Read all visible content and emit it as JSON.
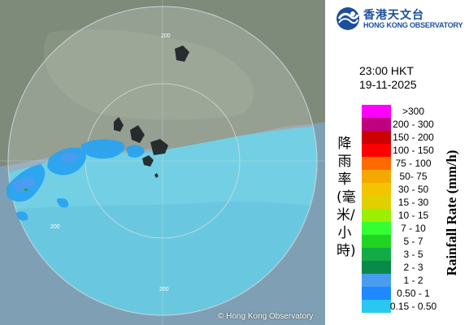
{
  "map": {
    "copyright": "© Hong Kong Observatory",
    "range_ring_label": "200"
  },
  "logo": {
    "chinese_name": "香港天文台",
    "english_name": "HONG KONG OBSERVATORY",
    "icon": "hko-emblem-icon"
  },
  "observation": {
    "time": "23:00 HKT",
    "date": "19-11-2025"
  },
  "legend": {
    "title_en": "Rainfall Rate (mm/h)",
    "title_cn": "降雨率(毫米/小時)",
    "items": [
      {
        "label": ">300",
        "color": "#ff00ff"
      },
      {
        "label": "200 - 300",
        "color": "#bf007f"
      },
      {
        "label": "150 - 200",
        "color": "#cc0000"
      },
      {
        "label": "100 - 150",
        "color": "#ff0000"
      },
      {
        "label": "75 - 100",
        "color": "#ff6a00"
      },
      {
        "label": "50- 75",
        "color": "#f5a800"
      },
      {
        "label": "30 - 50",
        "color": "#f5c400"
      },
      {
        "label": "15 - 30",
        "color": "#e0d000"
      },
      {
        "label": "10 - 15",
        "color": "#9af000"
      },
      {
        "label": "7 - 10",
        "color": "#33ff33"
      },
      {
        "label": "5 - 7",
        "color": "#22d422"
      },
      {
        "label": "3 - 5",
        "color": "#12ab46"
      },
      {
        "label": "2 - 3",
        "color": "#0a8a4a"
      },
      {
        "label": "1 - 2",
        "color": "#4a9cf0"
      },
      {
        "label": "0.50 - 1",
        "color": "#1e88ff"
      },
      {
        "label": "0.15 - 0.50",
        "color": "#28c8f0"
      }
    ]
  }
}
